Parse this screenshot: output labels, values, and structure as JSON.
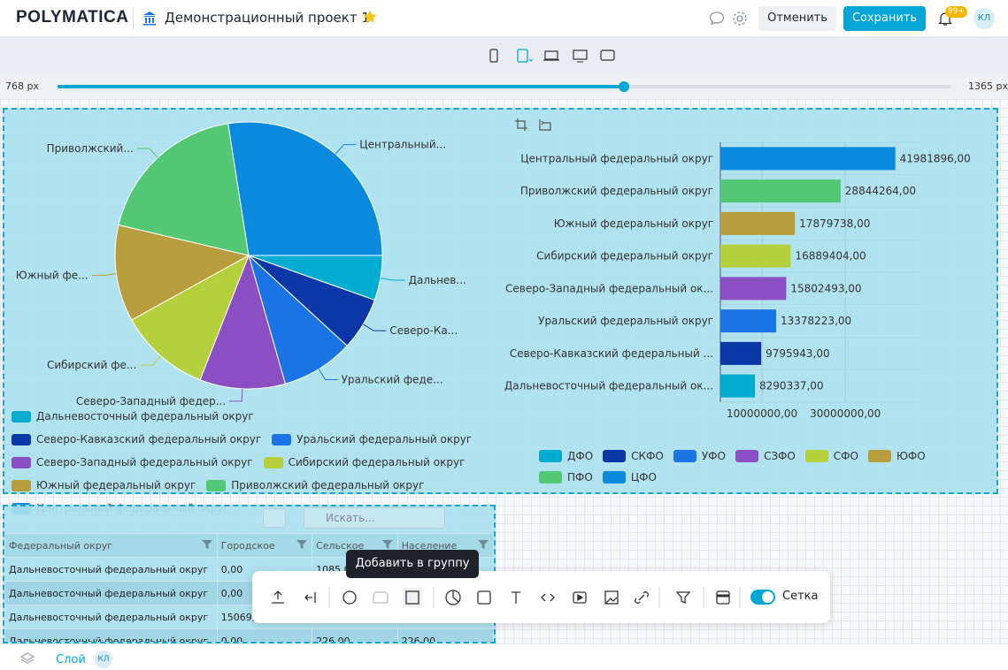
{
  "header": {
    "logo": "POLYMATICA",
    "project_title": "Демонстрационный проект 1",
    "cancel_button": "Отменить",
    "save_button": "Сохранить",
    "notification_badge": "99+",
    "user_initials": "КЛ"
  },
  "width_slider": {
    "min_label": "768 px",
    "max_label": "1365 px"
  },
  "chart_data": [
    {
      "type": "pie",
      "categories": [
        "Дальневосточный федеральный округ",
        "Северо-Кавказский федеральный округ",
        "Уральский федеральный округ",
        "Северо-Западный федеральный округ",
        "Сибирский федеральный округ",
        "Южный федеральный округ",
        "Приволжский федеральный округ",
        "Центральный федеральный округ"
      ],
      "labels": [
        "Дальнев...",
        "Северо-Ка...",
        "Уральский феде...",
        "Северо-Западный федер...",
        "Сибирский фе...",
        "Южный фе...",
        "Приволжский...",
        "Центральный..."
      ],
      "values": [
        8290337,
        9795943,
        13378223,
        15802493,
        16889404,
        17879738,
        28844264,
        41981896
      ],
      "colors": [
        "#00acd0",
        "#0b38a6",
        "#1a74e6",
        "#8b4fc4",
        "#b6cf3c",
        "#b89d3d",
        "#53c874",
        "#0a8ade"
      ]
    },
    {
      "type": "bar",
      "categories": [
        "Центральный федеральный округ",
        "Приволжский федеральный округ",
        "Южный федеральный округ",
        "Сибирский федеральный округ",
        "Северо-Западный федеральный ок...",
        "Уральский федеральный округ",
        "Северо-Кавказский федеральный ...",
        "Дальневосточный федеральный ок..."
      ],
      "values": [
        41981896,
        28844264,
        17879738,
        16889404,
        15802493,
        13378223,
        9795943,
        8290337
      ],
      "value_labels": [
        "41981896,00",
        "28844264,00",
        "17879738,00",
        "16889404,00",
        "15802493,00",
        "13378223,00",
        "9795943,00",
        "8290337,00"
      ],
      "colors": [
        "#0a8ade",
        "#53c874",
        "#b89d3d",
        "#b6cf3c",
        "#8b4fc4",
        "#1a74e6",
        "#0b38a6",
        "#00acd0"
      ],
      "xlim": [
        0,
        48000000
      ],
      "xticks": [
        {
          "value": 10000000,
          "label": "10000000,00"
        },
        {
          "value": 30000000,
          "label": "30000000,00"
        }
      ],
      "grid": true,
      "legend": [
        {
          "name": "ДФО",
          "color": "#00acd0"
        },
        {
          "name": "СКФО",
          "color": "#0b38a6"
        },
        {
          "name": "УФО",
          "color": "#1a74e6"
        },
        {
          "name": "СЗФО",
          "color": "#8b4fc4"
        },
        {
          "name": "СФО",
          "color": "#b6cf3c"
        },
        {
          "name": "ЮФО",
          "color": "#b89d3d"
        },
        {
          "name": "ПФО",
          "color": "#53c874"
        },
        {
          "name": "ЦФО",
          "color": "#0a8ade"
        }
      ]
    }
  ],
  "table": {
    "search_placeholder": "Искать...",
    "columns": [
      "Федеральный округ",
      "Городское",
      "Сельское",
      "Население"
    ],
    "rows": [
      [
        "Дальневосточный федеральный округ",
        "0,00",
        "1085,00",
        null
      ],
      [
        "Дальневосточный федеральный округ",
        "0,00",
        null,
        null
      ],
      [
        "Дальневосточный федеральный округ",
        "15069,00",
        null,
        null
      ],
      [
        "Дальневосточный федеральный округ",
        "0,00",
        "226,00",
        "226,00"
      ]
    ]
  },
  "tooltip": "Добавить в группу",
  "toolbar": {
    "grid_toggle_label": "Сетка"
  },
  "footer": {
    "layer_label": "Слой",
    "user_initials": "КЛ"
  }
}
